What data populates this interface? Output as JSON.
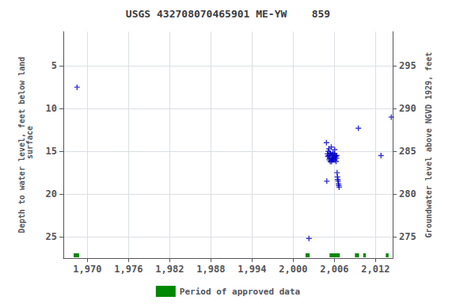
{
  "chart_data": {
    "type": "scatter",
    "title": "USGS 432708070465901 ME-YW    859",
    "ylabel": "Depth to water level, feet below land\n surface",
    "y2label": "Groundwater level above NGVD 1929, feet",
    "xlim": [
      1966.5,
      2014.5
    ],
    "xticks": [
      1970,
      1976,
      1982,
      1988,
      1994,
      2000,
      2006,
      2012
    ],
    "ylim": [
      27.5,
      1.0
    ],
    "yticks": [
      5,
      10,
      15,
      20,
      25
    ],
    "y2lim": [
      272.5,
      299.0
    ],
    "y2ticks": [
      295,
      290,
      285,
      280,
      275
    ],
    "grid": true,
    "legend": "bottom",
    "color": "#0000cc",
    "marker": "plus",
    "x": [
      1968.5,
      2002.3,
      2004.85,
      2004.9,
      2005.0,
      2005.05,
      2005.1,
      2005.15,
      2005.2,
      2005.25,
      2005.3,
      2005.35,
      2005.4,
      2005.45,
      2005.5,
      2005.55,
      2005.6,
      2005.65,
      2005.7,
      2005.75,
      2005.8,
      2005.85,
      2005.9,
      2005.95,
      2006.0,
      2006.05,
      2006.1,
      2006.15,
      2006.2,
      2006.25,
      2006.3,
      2006.35,
      2006.4,
      2006.45,
      2006.5,
      2006.55,
      2006.6,
      2006.65,
      2006.7,
      2009.5,
      2012.8,
      2014.3
    ],
    "values": [
      7.5,
      25.2,
      14.0,
      18.5,
      15.3,
      15.6,
      15.0,
      15.5,
      14.7,
      16.0,
      15.8,
      15.2,
      16.2,
      15.3,
      15.5,
      14.5,
      16.2,
      15.8,
      16.0,
      15.4,
      15.2,
      15.9,
      16.0,
      15.7,
      15.3,
      14.8,
      16.0,
      15.5,
      15.6,
      16.2,
      15.8,
      15.5,
      17.5,
      18.0,
      18.3,
      18.5,
      18.8,
      19.0,
      19.2,
      12.3,
      15.5,
      11.0
    ],
    "periods": {
      "name": "Period of approved data",
      "color": "#008800",
      "ranges": [
        [
          1968.0,
          1968.8
        ],
        [
          2001.8,
          2002.4
        ],
        [
          2005.3,
          2006.8
        ],
        [
          2009.0,
          2009.6
        ],
        [
          2010.2,
          2010.6
        ],
        [
          2013.5,
          2013.9
        ]
      ]
    }
  }
}
